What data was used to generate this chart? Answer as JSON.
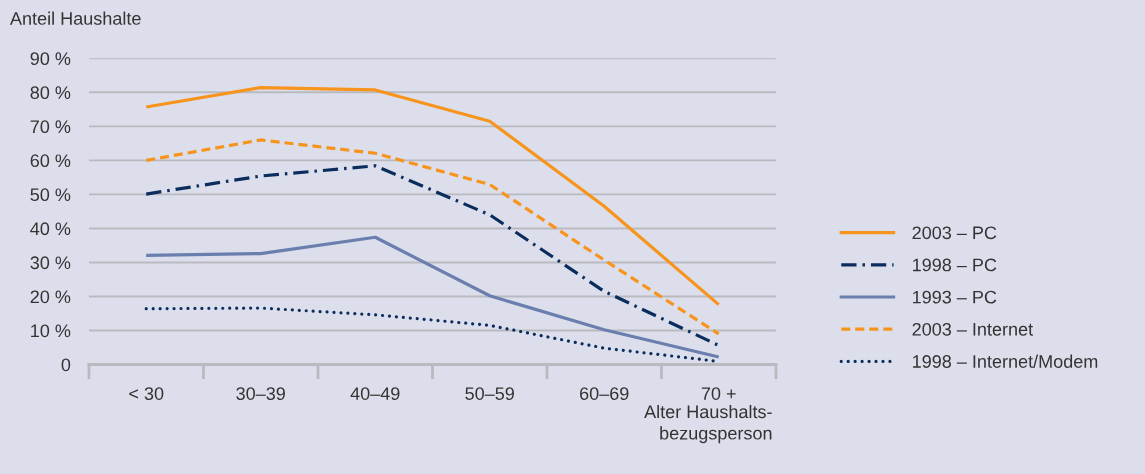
{
  "chart_data": {
    "type": "line",
    "ylabel": "Anteil Haushalte",
    "xlabel": "Alter Haushalts-\nbezugsperson",
    "categories": [
      "< 30",
      "30–39",
      "40–49",
      "50–59",
      "60–69",
      "70 +"
    ],
    "series": [
      {
        "name": "2003 – PC",
        "color": "#f7941d",
        "line_style": "solid",
        "values": [
          75.7,
          81.4,
          80.7,
          71.5,
          46.5,
          17.6
        ]
      },
      {
        "name": "1998 – PC",
        "color": "#0b2d5e",
        "line_style": "dashdot",
        "values": [
          50.1,
          55.4,
          58.4,
          44.0,
          21.5,
          5.6
        ]
      },
      {
        "name": "1993 – PC",
        "color": "#6a7fae",
        "line_style": "solid",
        "values": [
          32.1,
          32.6,
          37.4,
          20.2,
          10.2,
          2.2
        ]
      },
      {
        "name": "2003 – Internet",
        "color": "#f7941d",
        "line_style": "dashed",
        "values": [
          60.0,
          66.0,
          62.1,
          52.9,
          30.7,
          9.0
        ]
      },
      {
        "name": "1998 – Internet/Modem",
        "color": "#0b2d5e",
        "line_style": "dotted",
        "values": [
          16.4,
          16.6,
          14.6,
          11.5,
          4.8,
          0.9
        ]
      }
    ],
    "ylim": [
      0,
      90
    ],
    "yticks": [
      0,
      {
        "value": 10,
        "label": "10 %"
      },
      {
        "value": 20,
        "label": "20 %"
      },
      {
        "value": 30,
        "label": "30 %"
      },
      {
        "value": 40,
        "label": "40 %"
      },
      {
        "value": 50,
        "label": "50 %"
      },
      {
        "value": 60,
        "label": "60 %"
      },
      {
        "value": 70,
        "label": "70 %"
      },
      {
        "value": 80,
        "label": "80 %"
      },
      {
        "value": 90,
        "label": "90 %"
      }
    ],
    "grid": "y",
    "legend": "right"
  }
}
